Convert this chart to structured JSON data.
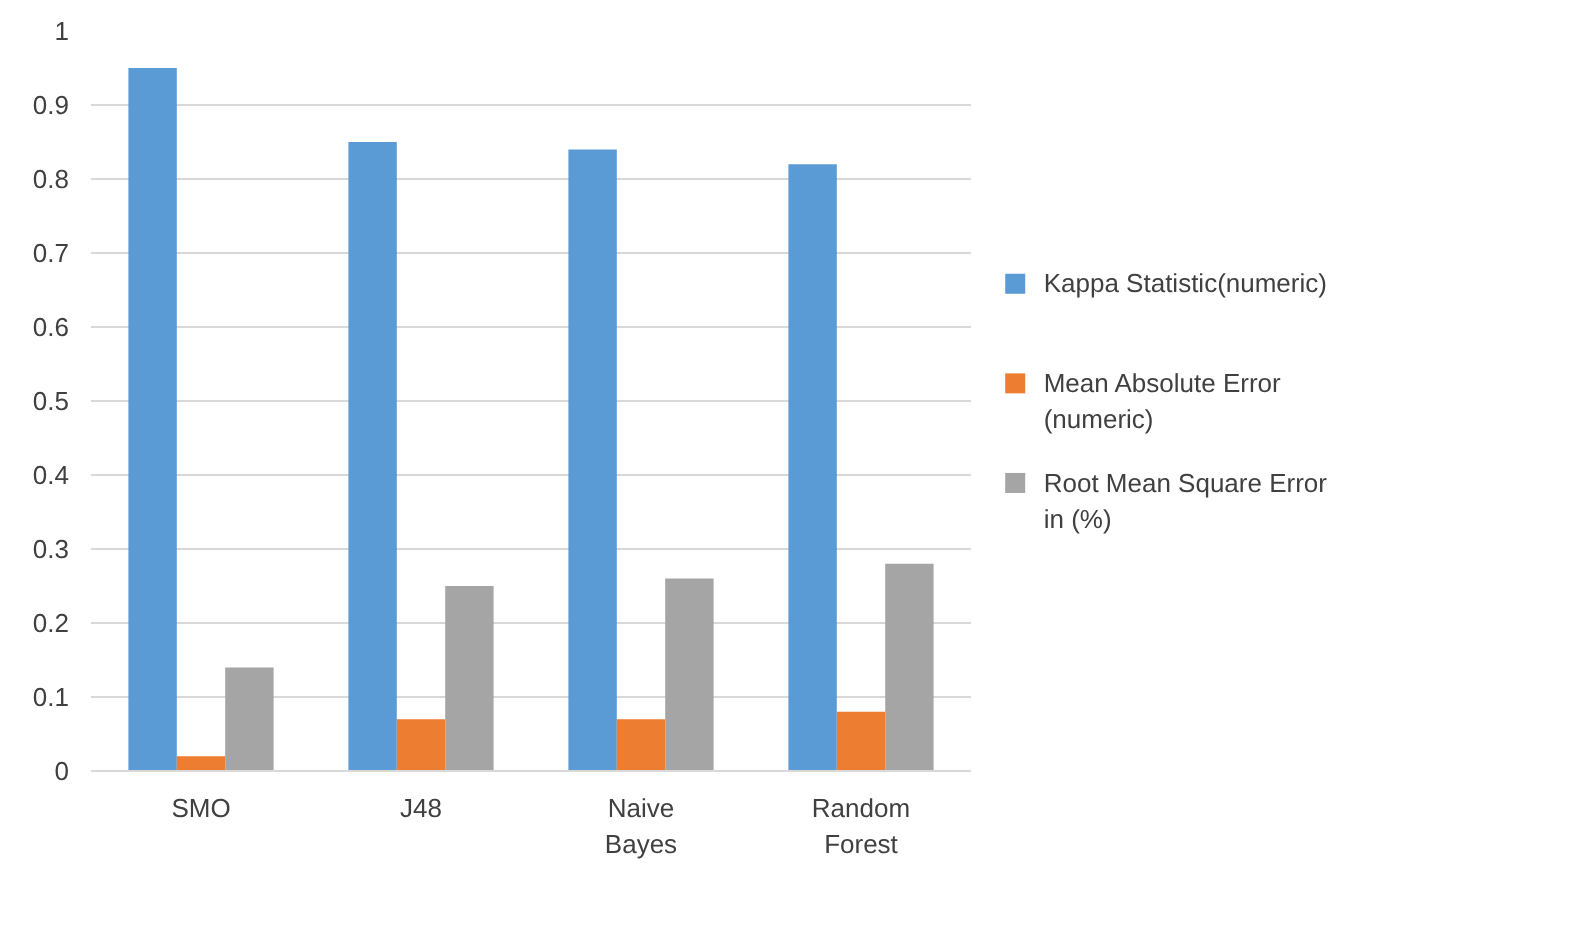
{
  "chart_data": {
    "type": "bar",
    "categories": [
      "SMO",
      "J48",
      "Naive Bayes",
      "Random Forest"
    ],
    "series": [
      {
        "name": "Kappa Statistic(numeric)",
        "color": "#5b9bd5",
        "values": [
          0.95,
          0.85,
          0.84,
          0.82
        ]
      },
      {
        "name": "Mean Absolute Error (numeric)",
        "color": "#ed7d31",
        "values": [
          0.02,
          0.07,
          0.07,
          0.08
        ]
      },
      {
        "name": "Root Mean Square Error in (%)",
        "color": "#a5a5a5",
        "values": [
          0.14,
          0.25,
          0.26,
          0.28
        ]
      }
    ],
    "ylim": [
      0,
      1
    ],
    "yticks": [
      0,
      0.1,
      0.2,
      0.3,
      0.4,
      0.5,
      0.6,
      0.7,
      0.8,
      0.9,
      1
    ],
    "grid": "y",
    "legend": "right"
  }
}
